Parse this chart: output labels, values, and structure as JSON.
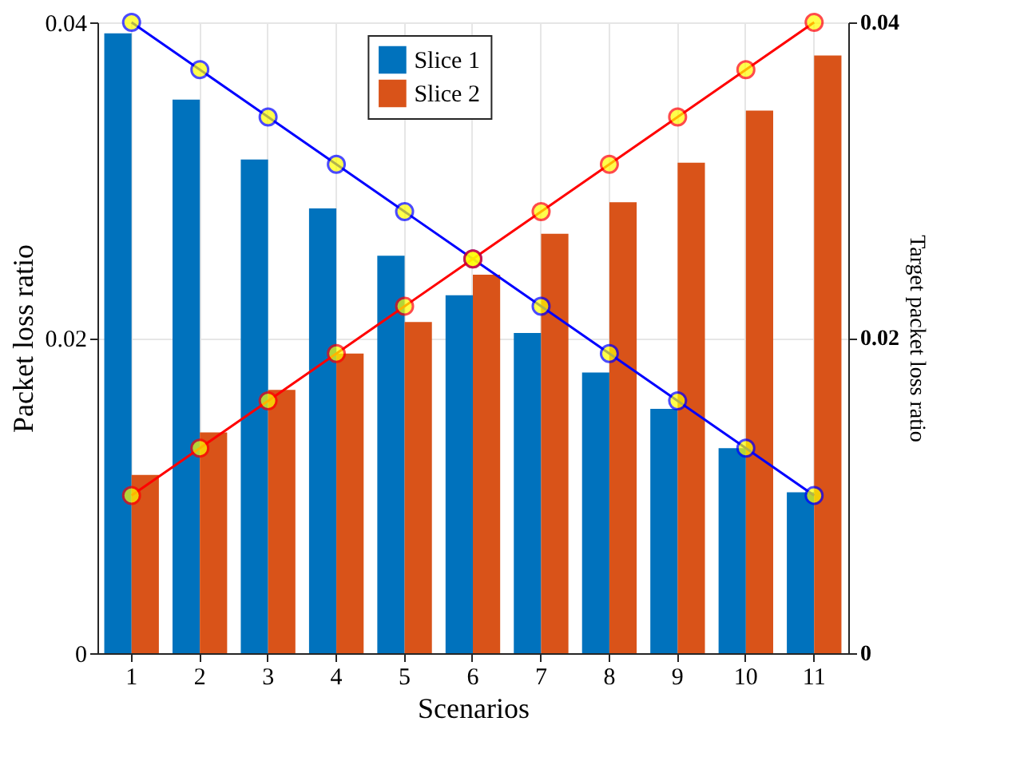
{
  "chart_data": {
    "type": "bar",
    "xlabel": "Scenarios",
    "ylabel": "Packet loss ratio",
    "y2label": "Target packet loss ratio",
    "categories": [
      "1",
      "2",
      "3",
      "4",
      "5",
      "6",
      "7",
      "8",
      "9",
      "10",
      "11"
    ],
    "series": [
      {
        "name": "Slice 1",
        "color": "#0072bd",
        "values": [
          0.0393,
          0.0351,
          0.0313,
          0.0282,
          0.0252,
          0.0227,
          0.0203,
          0.0178,
          0.0155,
          0.013,
          0.0102
        ]
      },
      {
        "name": "Slice 2",
        "color": "#d95319",
        "values": [
          0.0113,
          0.014,
          0.0167,
          0.019,
          0.021,
          0.024,
          0.0266,
          0.0286,
          0.0311,
          0.0344,
          0.0379
        ]
      },
      {
        "type": "line",
        "axis": "y2",
        "color": "#0000ff",
        "values": [
          0.04,
          0.037,
          0.034,
          0.031,
          0.028,
          0.025,
          0.022,
          0.019,
          0.016,
          0.013,
          0.01
        ]
      },
      {
        "type": "line",
        "axis": "y2",
        "color": "#ff0000",
        "values": [
          0.01,
          0.013,
          0.016,
          0.019,
          0.022,
          0.025,
          0.028,
          0.031,
          0.034,
          0.037,
          0.04
        ]
      }
    ],
    "ylim": [
      0,
      0.04
    ],
    "yticks": [
      0,
      0.02,
      0.04
    ],
    "y2lim": [
      0,
      0.04
    ],
    "y2ticks": [
      0,
      0.02,
      0.04
    ],
    "grid": true,
    "legend": "top",
    "marker": "circle",
    "line_style": "solid"
  }
}
